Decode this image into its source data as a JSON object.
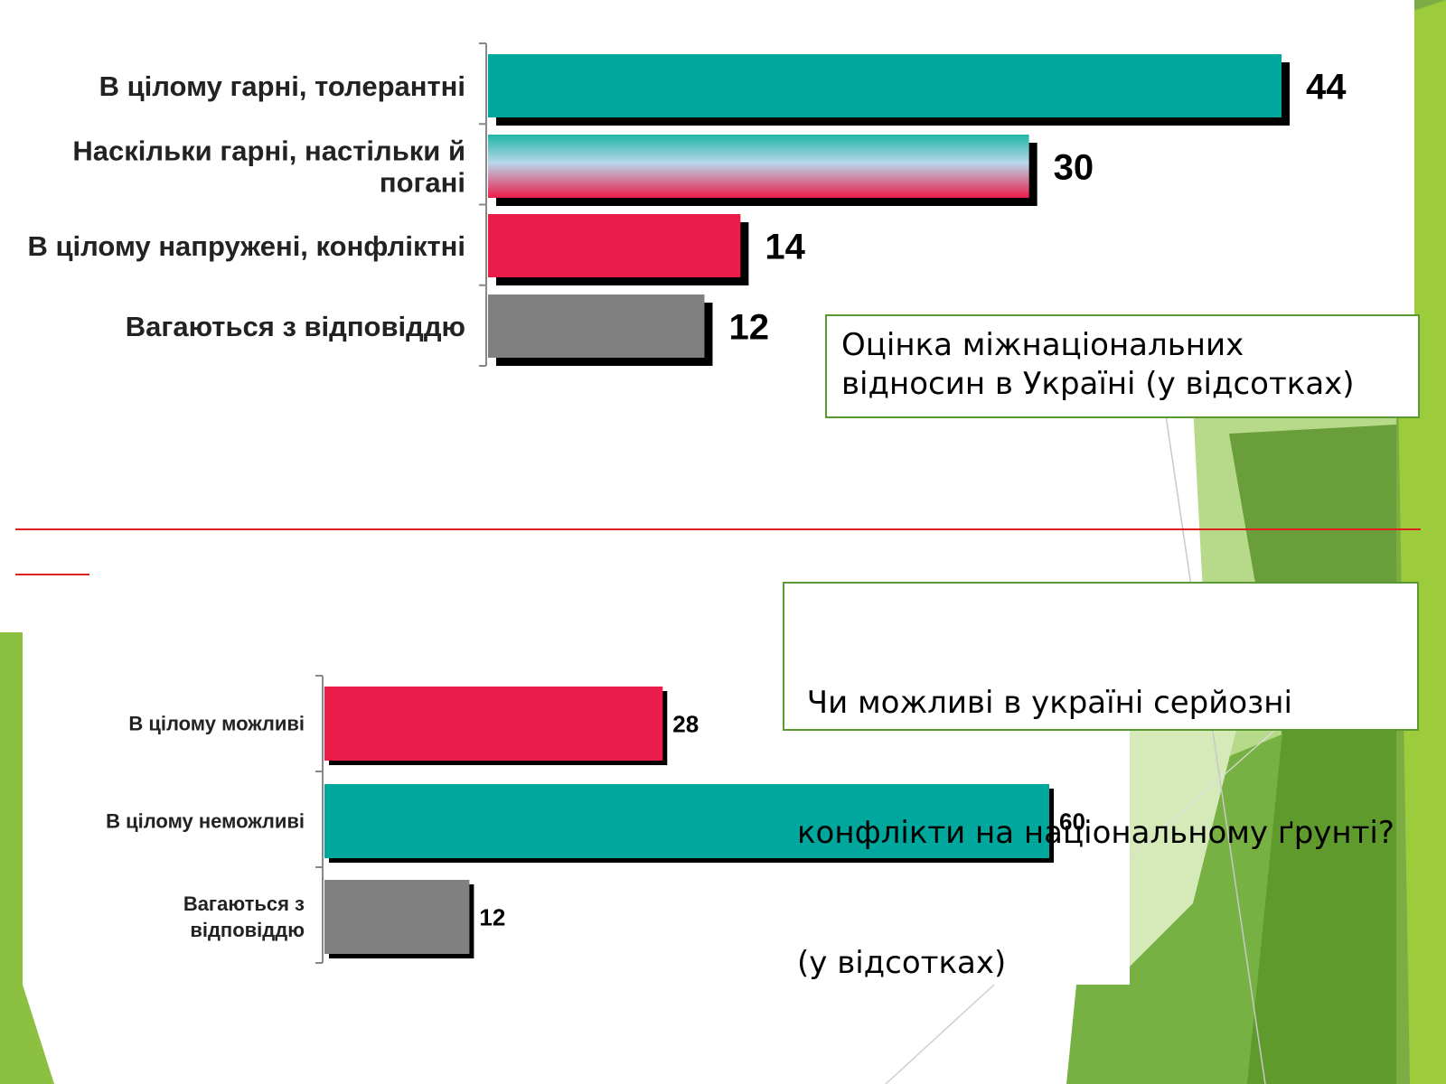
{
  "colors": {
    "teal": "#00a79d",
    "red": "#ec1c4a",
    "gray": "#808080",
    "green_dark": "#5b9a32",
    "green_light": "#9ccb3b",
    "divider": "#e0201e"
  },
  "textbox1": {
    "lines": [
      "Оцінка міжнаціональних",
      "відносин в Україні (у відсотках)"
    ]
  },
  "textbox2": {
    "lines": [
      " Чи можливі в україні серйозні",
      "конфлікти на національному ґрунті?",
      "(у відсотках)"
    ]
  },
  "chart_data": [
    {
      "type": "bar",
      "orientation": "horizontal",
      "categories": [
        "В цілому гарні, толерантні",
        "Наскільки гарні, настільки й погані",
        "В цілому напружені, конфліктні",
        "Вагаються з відповіддю"
      ],
      "values": [
        44,
        30,
        14,
        12
      ],
      "bar_colors": [
        "teal",
        "gradient-blue-red",
        "red",
        "gray"
      ],
      "xlim": [
        0,
        48
      ],
      "grid": false,
      "legend": "none"
    },
    {
      "type": "bar",
      "orientation": "horizontal",
      "categories": [
        "В цілому можливі",
        "В цілому неможливі",
        "Вагаються з відповіддю"
      ],
      "values": [
        28,
        60,
        12
      ],
      "bar_colors": [
        "red",
        "teal",
        "gray"
      ],
      "xlim": [
        0,
        60
      ],
      "grid": false,
      "legend": "none"
    }
  ]
}
